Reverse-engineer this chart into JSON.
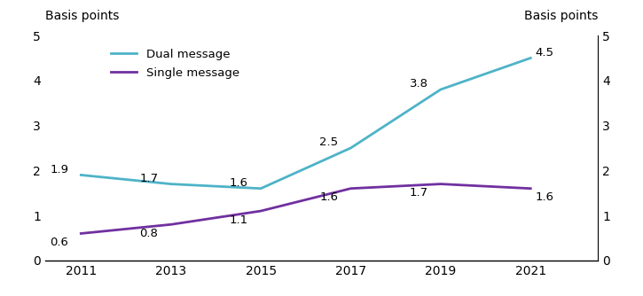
{
  "years": [
    2011,
    2013,
    2015,
    2017,
    2019,
    2021
  ],
  "dual_message": [
    1.9,
    1.7,
    1.6,
    2.5,
    3.8,
    4.5
  ],
  "single_message": [
    0.6,
    0.8,
    1.1,
    1.6,
    1.7,
    1.6
  ],
  "dual_color": "#4db3c8",
  "single_color": "#7030a0",
  "ylabel_left": "Basis points",
  "ylabel_right": "Basis points",
  "legend_dual": "Dual message",
  "legend_single": "Single message",
  "ylim": [
    0,
    5
  ],
  "yticks": [
    0,
    1,
    2,
    3,
    4,
    5
  ],
  "xticks": [
    2011,
    2013,
    2015,
    2017,
    2019,
    2021
  ],
  "line_width": 2.0,
  "background_color": "#ffffff",
  "dual_labels": [
    [
      2011,
      1.9,
      "1.9",
      "right",
      0.12
    ],
    [
      2013,
      1.7,
      "1.7",
      "right",
      0.12
    ],
    [
      2015,
      1.6,
      "1.6",
      "right",
      0.12
    ],
    [
      2017,
      2.5,
      "2.5",
      "right",
      0.12
    ],
    [
      2019,
      3.8,
      "3.8",
      "right",
      0.12
    ],
    [
      2021,
      4.5,
      "4.5",
      "left",
      0.12
    ]
  ],
  "single_labels": [
    [
      2011,
      0.6,
      "0.6",
      "right",
      -0.2
    ],
    [
      2013,
      0.8,
      "0.8",
      "right",
      -0.2
    ],
    [
      2015,
      1.1,
      "1.1",
      "right",
      -0.2
    ],
    [
      2017,
      1.6,
      "1.6",
      "right",
      -0.2
    ],
    [
      2019,
      1.7,
      "1.7",
      "right",
      -0.2
    ],
    [
      2021,
      1.6,
      "1.6",
      "left",
      -0.2
    ]
  ],
  "xlim": [
    2010.2,
    2022.5
  ],
  "label_fontsize": 9.5,
  "tick_fontsize": 10,
  "axis_label_fontsize": 10
}
